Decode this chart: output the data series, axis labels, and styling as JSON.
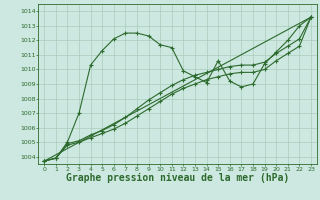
{
  "background_color": "#cce8e0",
  "grid_color": "#aaccbb",
  "line_color": "#2d6a2d",
  "xlabel": "Graphe pression niveau de la mer (hPa)",
  "xlabel_fontsize": 7,
  "xlim": [
    -0.5,
    23.5
  ],
  "ylim": [
    1003.5,
    1014.5
  ],
  "yticks": [
    1004,
    1005,
    1006,
    1007,
    1008,
    1009,
    1010,
    1011,
    1012,
    1013,
    1014
  ],
  "xticks": [
    0,
    1,
    2,
    3,
    4,
    5,
    6,
    7,
    8,
    9,
    10,
    11,
    12,
    13,
    14,
    15,
    16,
    17,
    18,
    19,
    20,
    21,
    22,
    23
  ],
  "series1": {
    "x": [
      0,
      1,
      2,
      3,
      4,
      5,
      6,
      7,
      8,
      9,
      10,
      11,
      12,
      13,
      14,
      15,
      16,
      17,
      18,
      19,
      20,
      21,
      22,
      23
    ],
    "y": [
      1003.7,
      1003.9,
      1005.0,
      1007.0,
      1010.3,
      1011.3,
      1012.1,
      1012.5,
      1012.5,
      1012.3,
      1011.7,
      1011.5,
      1009.9,
      1009.5,
      1009.1,
      1010.6,
      1009.2,
      1008.8,
      1009.0,
      1010.4,
      1011.2,
      1012.0,
      1013.0,
      1013.6
    ]
  },
  "series2": {
    "x": [
      0,
      1,
      2,
      3,
      4,
      5,
      6,
      7,
      8,
      9,
      10,
      11,
      12,
      13,
      14,
      15,
      16,
      17,
      18,
      19,
      20,
      21,
      22,
      23
    ],
    "y": [
      1003.7,
      1003.9,
      1004.9,
      1005.1,
      1005.5,
      1005.8,
      1006.2,
      1006.7,
      1007.3,
      1007.9,
      1008.4,
      1008.9,
      1009.3,
      1009.6,
      1009.8,
      1010.0,
      1010.2,
      1010.3,
      1010.3,
      1010.5,
      1011.1,
      1011.6,
      1012.1,
      1013.6
    ]
  },
  "series3": {
    "x": [
      0,
      23
    ],
    "y": [
      1003.7,
      1013.6
    ]
  },
  "series4": {
    "x": [
      0,
      1,
      2,
      3,
      4,
      5,
      6,
      7,
      8,
      9,
      10,
      11,
      12,
      13,
      14,
      15,
      16,
      17,
      18,
      19,
      20,
      21,
      22,
      23
    ],
    "y": [
      1003.7,
      1003.9,
      1004.8,
      1005.0,
      1005.3,
      1005.6,
      1005.9,
      1006.3,
      1006.8,
      1007.3,
      1007.8,
      1008.3,
      1008.7,
      1009.0,
      1009.3,
      1009.5,
      1009.7,
      1009.8,
      1009.8,
      1010.0,
      1010.6,
      1011.1,
      1011.6,
      1013.6
    ]
  }
}
